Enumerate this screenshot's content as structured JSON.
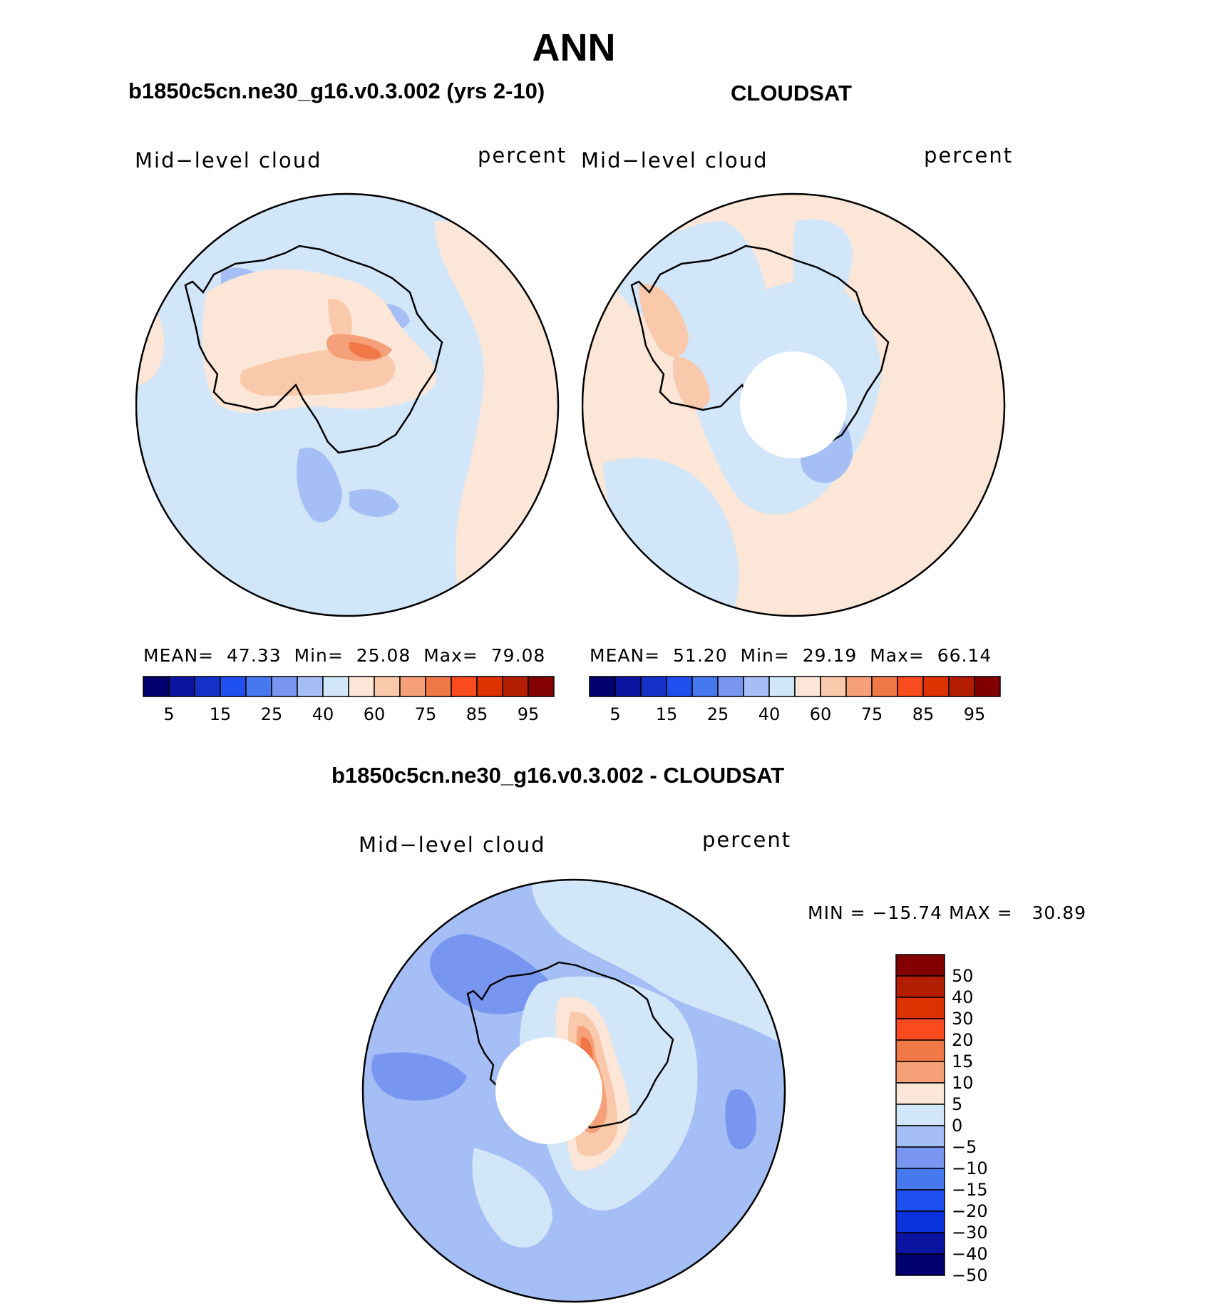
{
  "figure_title": "ANN",
  "panels": [
    {
      "title": "b1850c5cn.ne30_g16.v0.3.002 (yrs 2-10)",
      "left_label": "Mid−level cloud",
      "right_label": "percent",
      "stats": {
        "mean_label": "MEAN=",
        "mean": "47.33",
        "min_label": "Min=",
        "min": "25.08",
        "max_label": "Max=",
        "max": "79.08"
      }
    },
    {
      "title": "CLOUDSAT",
      "left_label": "Mid−level cloud",
      "right_label": "percent",
      "stats": {
        "mean_label": "MEAN=",
        "mean": "51.20",
        "min_label": "Min=",
        "min": "29.19",
        "max_label": "Max=",
        "max": "66.14"
      }
    },
    {
      "title": "b1850c5cn.ne30_g16.v0.3.002 - CLOUDSAT",
      "left_label": "Mid−level cloud",
      "right_label": "percent",
      "minmax": "MIN = −15.74 MAX =   30.89"
    }
  ],
  "colorbar_abs": {
    "colors": [
      "#00006e",
      "#0a14a0",
      "#1432c8",
      "#1e50f0",
      "#4678f0",
      "#7896f0",
      "#a5bef5",
      "#d2e6fa",
      "#fbe6d7",
      "#fac8aa",
      "#f5a078",
      "#f07846",
      "#fa4b1e",
      "#dc3200",
      "#b41e00",
      "#820000"
    ],
    "labels": [
      "5",
      "15",
      "25",
      "40",
      "60",
      "75",
      "85",
      "95"
    ]
  },
  "colorbar_diff": {
    "colors": [
      "#820000",
      "#b41e00",
      "#dc3200",
      "#fa4b1e",
      "#f07846",
      "#f5a078",
      "#fbe6d7",
      "#d2e6fa",
      "#a5bef5",
      "#7896f0",
      "#4678f0",
      "#1e50f0",
      "#0a32dc",
      "#0a14a0",
      "#00006e"
    ],
    "labels": [
      "50",
      "40",
      "30",
      "20",
      "15",
      "10",
      "5",
      "0",
      "−5",
      "−10",
      "−15",
      "−20",
      "−30",
      "−40",
      "−50"
    ]
  },
  "map_colors": {
    "base_blue": "#d2e6fa",
    "light_orange": "#fbe6d7",
    "mid_blue": "#a5bef5",
    "blue": "#7896f0",
    "orange": "#fac8aa",
    "orange_dark": "#f5a078",
    "red": "#f07846",
    "deep_red": "#fa4b1e"
  }
}
